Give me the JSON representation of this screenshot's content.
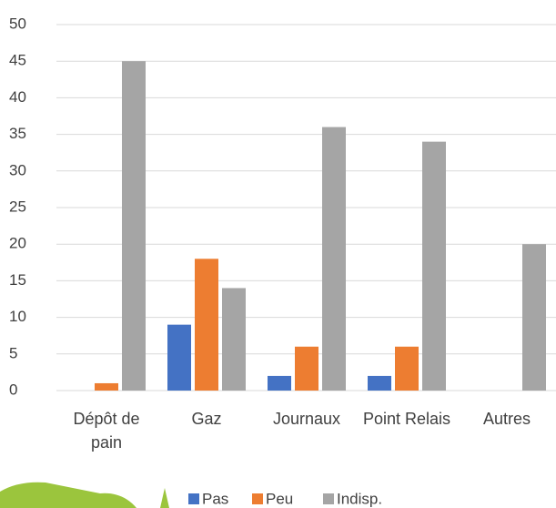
{
  "chart_data": {
    "type": "bar",
    "categories": [
      "Dépôt de pain",
      "Gaz",
      "Journaux",
      "Point Relais",
      "Autres"
    ],
    "series": [
      {
        "name": "Pas",
        "color": "#4472c4",
        "values": [
          0,
          9,
          2,
          2,
          0
        ]
      },
      {
        "name": "Peu",
        "color": "#ed7d31",
        "values": [
          1,
          18,
          6,
          6,
          0
        ]
      },
      {
        "name": "Indisp.",
        "color": "#a5a5a5",
        "values": [
          45,
          14,
          36,
          34,
          20
        ]
      }
    ],
    "ylim": [
      0,
      50
    ],
    "yticks": [
      0,
      5,
      10,
      15,
      20,
      25,
      30,
      35,
      40,
      45,
      50
    ],
    "grid": true,
    "legend": "bottom"
  }
}
